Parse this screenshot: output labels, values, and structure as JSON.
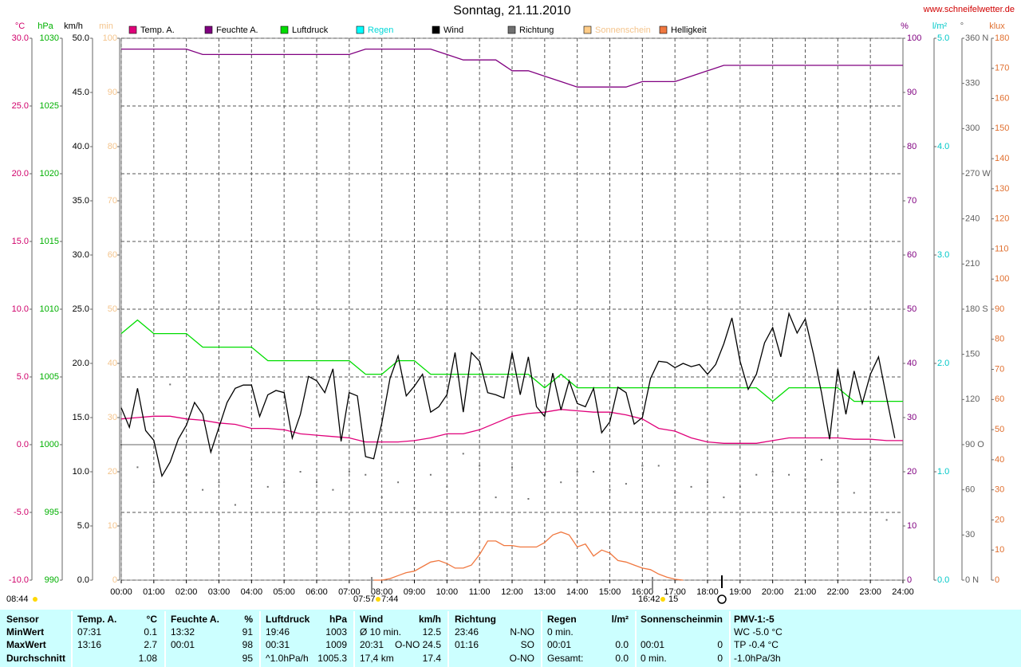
{
  "chart_data": {
    "type": "line",
    "title": "Sonntag, 21.11.2010",
    "source": "www.schneifelwetter.de",
    "xlim": [
      0,
      24
    ],
    "xticks": [
      {
        "value": 0,
        "label": "00:00"
      },
      {
        "value": 1,
        "label": "01:00"
      },
      {
        "value": 2,
        "label": "02:00"
      },
      {
        "value": 3,
        "label": "03:00"
      },
      {
        "value": 4,
        "label": "04:00"
      },
      {
        "value": 5,
        "label": "05:00"
      },
      {
        "value": 6,
        "label": "06:00"
      },
      {
        "value": 7,
        "label": "07:00"
      },
      {
        "value": 8,
        "label": "08:00"
      },
      {
        "value": 9,
        "label": "09:00"
      },
      {
        "value": 10,
        "label": "10:00"
      },
      {
        "value": 11,
        "label": "11:00"
      },
      {
        "value": 12,
        "label": "12:00"
      },
      {
        "value": 13,
        "label": "13:00"
      },
      {
        "value": 14,
        "label": "14:00"
      },
      {
        "value": 15,
        "label": "15:00"
      },
      {
        "value": 16,
        "label": "16:00"
      },
      {
        "value": 17,
        "label": "17:00"
      },
      {
        "value": 18,
        "label": "18:00"
      },
      {
        "value": 19,
        "label": "19:00"
      },
      {
        "value": 20,
        "label": "20:00"
      },
      {
        "value": 21,
        "label": "21:00"
      },
      {
        "value": 22,
        "label": "22:00"
      },
      {
        "value": 23,
        "label": "23:00"
      },
      {
        "value": 24,
        "label": "24:00"
      }
    ],
    "grid": true,
    "grid_axis": 0,
    "axes": [
      {
        "unit": "°C",
        "color": "#d0006a",
        "lim": [
          -10,
          30
        ],
        "ticks": [
          {
            "value": -10,
            "label": "-10.0"
          },
          {
            "value": -5,
            "label": "-5.0"
          },
          {
            "value": 0,
            "label": "0.0"
          },
          {
            "value": 5,
            "label": "5.0"
          },
          {
            "value": 10,
            "label": "10.0"
          },
          {
            "value": 15,
            "label": "15.0"
          },
          {
            "value": 20,
            "label": "20.0"
          },
          {
            "value": 25,
            "label": "25.0"
          },
          {
            "value": 30,
            "label": "30.0"
          }
        ]
      },
      {
        "unit": "hPa",
        "color": "#00b000",
        "lim": [
          990,
          1030
        ],
        "ticks": [
          990,
          995,
          1000,
          1005,
          1010,
          1015,
          1020,
          1025,
          1030
        ]
      },
      {
        "unit": "km/h",
        "color": "#000000",
        "lim": [
          0,
          50
        ],
        "ticks": [
          {
            "value": 0,
            "label": "0.0"
          },
          {
            "value": 5,
            "label": "5.0"
          },
          {
            "value": 10,
            "label": "10.0"
          },
          {
            "value": 15,
            "label": "15.0"
          },
          {
            "value": 20,
            "label": "20.0"
          },
          {
            "value": 25,
            "label": "25.0"
          },
          {
            "value": 30,
            "label": "30.0"
          },
          {
            "value": 35,
            "label": "35.0"
          },
          {
            "value": 40,
            "label": "40.0"
          },
          {
            "value": 45,
            "label": "45.0"
          },
          {
            "value": 50,
            "label": "50.0"
          }
        ]
      },
      {
        "unit": "min",
        "color": "#f4c48c",
        "lim": [
          0,
          100
        ],
        "ticks": [
          0,
          10,
          20,
          30,
          40,
          50,
          60,
          70,
          80,
          90,
          100
        ]
      },
      {
        "unit": "%",
        "color": "#800080",
        "lim": [
          0,
          100
        ],
        "ticks": [
          0,
          10,
          20,
          30,
          40,
          50,
          60,
          70,
          80,
          90,
          100
        ]
      },
      {
        "unit": "l/m²",
        "color": "#00c8c8",
        "lim": [
          0,
          5
        ],
        "ticks": [
          {
            "value": 0,
            "label": "0.0"
          },
          {
            "value": 1,
            "label": "1.0"
          },
          {
            "value": 2,
            "label": "2.0"
          },
          {
            "value": 3,
            "label": "3.0"
          },
          {
            "value": 4,
            "label": "4.0"
          },
          {
            "value": 5,
            "label": "5.0"
          }
        ]
      },
      {
        "unit": "°",
        "color": "#606060",
        "lim": [
          0,
          360
        ],
        "ticks": [
          {
            "value": 0,
            "label": "0  N"
          },
          30,
          60,
          {
            "value": 90,
            "label": "90  O"
          },
          120,
          150,
          {
            "value": 180,
            "label": "180 S"
          },
          210,
          240,
          {
            "value": 270,
            "label": "270 W"
          },
          300,
          330,
          {
            "value": 360,
            "label": "360 N"
          }
        ]
      },
      {
        "unit": "klux",
        "color": "#e07030",
        "lim": [
          0,
          180
        ],
        "ticks": [
          0,
          10,
          20,
          30,
          40,
          50,
          60,
          70,
          80,
          90,
          100,
          110,
          120,
          130,
          140,
          150,
          160,
          170,
          180
        ]
      }
    ],
    "x": [
      0,
      0.5,
      1,
      1.5,
      2,
      2.5,
      3,
      3.5,
      4,
      4.5,
      5,
      5.5,
      6,
      6.5,
      7,
      7.5,
      8,
      8.5,
      9,
      9.5,
      10,
      10.5,
      11,
      11.5,
      12,
      12.5,
      13,
      13.5,
      14,
      14.5,
      15,
      15.5,
      16,
      16.5,
      17,
      17.5,
      18,
      18.5,
      19,
      19.5,
      20,
      20.5,
      21,
      21.5,
      22,
      22.5,
      23,
      23.5,
      24
    ],
    "series": [
      {
        "name": "Temp. A.",
        "color": "#e0007a",
        "axis": 0,
        "style": "line",
        "values": [
          1.9,
          2.0,
          2.1,
          2.1,
          1.9,
          1.8,
          1.6,
          1.5,
          1.2,
          1.2,
          1.1,
          0.8,
          0.7,
          0.6,
          0.5,
          0.2,
          0.2,
          0.2,
          0.3,
          0.5,
          0.8,
          0.8,
          1.1,
          1.6,
          2.1,
          2.3,
          2.4,
          2.6,
          2.5,
          2.4,
          2.4,
          2.2,
          1.9,
          1.2,
          1.0,
          0.5,
          0.2,
          0.1,
          0.1,
          0.1,
          0.3,
          0.5,
          0.5,
          0.5,
          0.5,
          0.4,
          0.4,
          0.3,
          0.3
        ]
      },
      {
        "name": "Feuchte A.",
        "color": "#800080",
        "axis": 4,
        "style": "line",
        "values": [
          98,
          98,
          98,
          98,
          98,
          97,
          97,
          97,
          97,
          97,
          97,
          97,
          97,
          97,
          97,
          98,
          98,
          98,
          98,
          98,
          97,
          96,
          96,
          96,
          94,
          94,
          93,
          92,
          91,
          91,
          91,
          91,
          92,
          92,
          92,
          93,
          94,
          95,
          95,
          95,
          95,
          95,
          95,
          95,
          95,
          95,
          95,
          95,
          95
        ]
      },
      {
        "name": "Luftdruck",
        "color": "#00dd00",
        "axis": 1,
        "style": "line",
        "values": [
          1008.2,
          1009.2,
          1008.2,
          1008.2,
          1008.2,
          1007.2,
          1007.2,
          1007.2,
          1007.2,
          1006.2,
          1006.2,
          1006.2,
          1006.2,
          1006.2,
          1006.2,
          1005.2,
          1005.2,
          1006.2,
          1006.2,
          1005.2,
          1005.2,
          1005.2,
          1005.2,
          1005.2,
          1005.2,
          1005.2,
          1004.2,
          1005.2,
          1004.2,
          1004.2,
          1004.2,
          1004.2,
          1004.2,
          1004.2,
          1004.2,
          1004.2,
          1004.2,
          1004.2,
          1004.2,
          1004.2,
          1003.2,
          1004.2,
          1004.2,
          1004.2,
          1004.2,
          1003.2,
          1003.2,
          1003.2,
          1003.2
        ]
      },
      {
        "name": "Regen",
        "color": "#00ffff",
        "label_color": "#00d8d8",
        "axis": 5
      },
      {
        "name": "Wind",
        "color": "#000000",
        "axis": 2,
        "style": "line",
        "x": [
          0,
          0.25,
          0.5,
          0.75,
          1,
          1.25,
          1.5,
          1.75,
          2,
          2.25,
          2.5,
          2.75,
          3,
          3.25,
          3.5,
          3.75,
          4,
          4.25,
          4.5,
          4.75,
          5,
          5.25,
          5.5,
          5.75,
          6,
          6.25,
          6.5,
          6.75,
          7,
          7.25,
          7.5,
          7.75,
          8,
          8.25,
          8.5,
          8.75,
          9,
          9.25,
          9.5,
          9.75,
          10,
          10.25,
          10.5,
          10.75,
          11,
          11.25,
          11.5,
          11.75,
          12,
          12.25,
          12.5,
          12.75,
          13,
          13.25,
          13.5,
          13.75,
          14,
          14.25,
          14.5,
          14.75,
          15,
          15.25,
          15.5,
          15.75,
          16,
          16.25,
          16.5,
          16.75,
          17,
          17.25,
          17.5,
          17.75,
          18,
          18.25,
          18.5,
          18.75,
          19,
          19.25,
          19.5,
          19.75,
          20,
          20.25,
          20.5,
          20.75,
          21,
          21.25,
          21.5,
          21.75,
          22,
          22.25,
          22.5,
          22.75,
          23,
          23.25,
          23.5,
          23.75
        ],
        "values": [
          15.9,
          14.1,
          17.7,
          13.8,
          12.9,
          9.6,
          10.9,
          13.0,
          14.3,
          16.4,
          15.3,
          11.8,
          14.1,
          16.4,
          17.7,
          18.0,
          18.0,
          15.1,
          17.1,
          17.5,
          17.3,
          13.1,
          15.3,
          18.8,
          18.4,
          17.3,
          19.5,
          12.8,
          17.3,
          17.0,
          11.4,
          11.2,
          14.5,
          18.6,
          20.7,
          17.0,
          17.9,
          19.0,
          15.5,
          16.0,
          17.1,
          21.0,
          15.5,
          21.0,
          20.2,
          17.3,
          17.1,
          16.8,
          21.0,
          17.1,
          20.6,
          16.0,
          15.1,
          19.1,
          15.7,
          18.4,
          16.3,
          16.0,
          17.7,
          13.6,
          14.6,
          17.8,
          17.3,
          14.4,
          15.0,
          18.6,
          20.2,
          20.1,
          19.6,
          20.0,
          19.7,
          19.9,
          19.0,
          19.9,
          21.8,
          24.2,
          20.2,
          17.6,
          19.0,
          21.9,
          23.3,
          20.6,
          24.6,
          22.8,
          24.1,
          20.9,
          17.3,
          13.0,
          19.5,
          15.3,
          19.3,
          16.3,
          19.0,
          20.6,
          16.8,
          13.1
        ]
      },
      {
        "name": "Richtung",
        "color": "#707070",
        "axis": 6,
        "style": "dots",
        "x": [
          0,
          0.5,
          1,
          1.5,
          2,
          2.5,
          3,
          3.5,
          4,
          4.5,
          5,
          5.5,
          6,
          6.5,
          7,
          7.5,
          8,
          8.5,
          9,
          9.5,
          10,
          10.5,
          11,
          11.5,
          12,
          12.5,
          13,
          13.5,
          14,
          14.5,
          15,
          15.5,
          16,
          16.5,
          17,
          17.5,
          18,
          18.5,
          19,
          19.5,
          20,
          20.5,
          21,
          21.5,
          22,
          22.5,
          23,
          23.5
        ],
        "values": [
          90,
          75,
          65,
          130,
          70,
          60,
          65,
          50,
          80,
          62,
          65,
          72,
          65,
          60,
          72,
          70,
          55,
          65,
          48,
          70,
          62,
          84,
          76,
          55,
          75,
          54,
          70,
          65,
          72,
          72,
          60,
          64,
          76,
          76,
          58,
          62,
          65,
          55,
          62,
          70,
          72,
          70,
          67,
          80,
          65,
          58,
          80,
          40
        ]
      },
      {
        "name": "Sonnenschein",
        "color": "#ffcc88",
        "label_color": "#f4c48c",
        "axis": 3
      },
      {
        "name": "Helligkeit",
        "color": "#f07840",
        "axis": 7,
        "style": "line",
        "x": [
          7.75,
          8,
          8.25,
          8.5,
          8.75,
          9,
          9.25,
          9.5,
          9.75,
          10,
          10.25,
          10.5,
          10.75,
          11,
          11.25,
          11.5,
          11.75,
          12,
          12.25,
          12.5,
          12.75,
          13,
          13.25,
          13.5,
          13.75,
          14,
          14.25,
          14.5,
          14.75,
          15,
          15.25,
          15.5,
          15.75,
          16,
          16.25,
          16.5,
          16.75,
          17,
          17.25
        ],
        "values": [
          0,
          0,
          0.5,
          1.5,
          2.5,
          3,
          4.5,
          6,
          6.5,
          5.5,
          4,
          4,
          5,
          8.5,
          13,
          13,
          11.5,
          11.5,
          11,
          11,
          11,
          12.5,
          15,
          16,
          15,
          11,
          12,
          8,
          10,
          9,
          6.5,
          6,
          5,
          4,
          3.5,
          2,
          1,
          0.3,
          0
        ]
      }
    ],
    "annotations": [
      "08:44",
      "07:57",
      "7:44",
      "16:42",
      "15"
    ]
  },
  "table": {
    "header": [
      "Sensor",
      "Temp. A.",
      "°C",
      "Feuchte A.",
      "%",
      "Luftdruck",
      "hPa",
      "Wind",
      "km/h",
      "Richtung",
      null,
      "Regen",
      "l/m²",
      "Sonnenschein",
      "min",
      "PMV-1:-5"
    ],
    "rows": [
      [
        "MinWert",
        "07:31",
        "0.1",
        "13:32",
        "91",
        "19:46",
        "1003",
        "Ø 10 min.",
        "12.5",
        "23:46",
        "N-NO",
        "0 min.",
        null,
        null,
        null,
        "WC -5.0 °C"
      ],
      [
        "MaxWert",
        "13:16",
        "2.7",
        "00:01",
        "98",
        "00:31",
        "1009",
        "20:31",
        "O-NO 24.5",
        "01:16",
        "SO",
        "00:01",
        "0.0",
        "00:01",
        "0",
        "TP -0.4 °C"
      ],
      [
        "Durchschnitt",
        null,
        "1.08",
        null,
        "95",
        "^1.0hPa/h",
        "1005.3",
        "17,4 km",
        "17.4",
        null,
        "O-NO",
        "Gesamt:",
        "0.0",
        "0 min.",
        "0",
        "-1.0hPa/3h"
      ]
    ]
  }
}
